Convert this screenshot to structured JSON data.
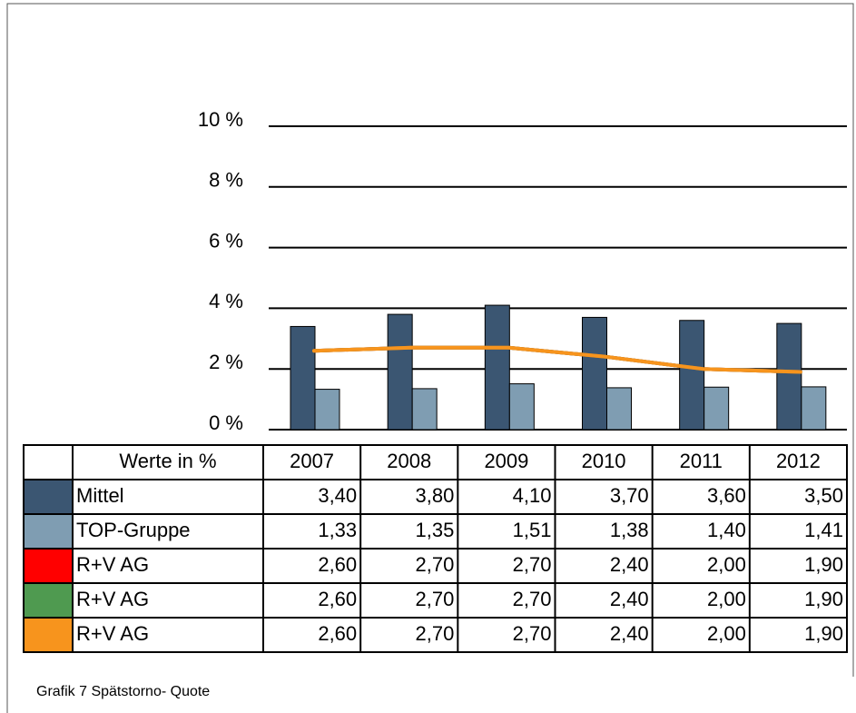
{
  "chart_data": {
    "type": "bar",
    "categories": [
      "2007",
      "2008",
      "2009",
      "2010",
      "2011",
      "2012"
    ],
    "table_header": "Werte in %",
    "series": [
      {
        "name": "Mittel",
        "type": "bar",
        "color": "#3b5672",
        "values": [
          3.4,
          3.8,
          4.1,
          3.7,
          3.6,
          3.5
        ],
        "value_labels": [
          "3,40",
          "3,80",
          "4,10",
          "3,70",
          "3,60",
          "3,50"
        ]
      },
      {
        "name": "TOP-Gruppe",
        "type": "bar",
        "color": "#7f9db2",
        "values": [
          1.33,
          1.35,
          1.51,
          1.38,
          1.4,
          1.41
        ],
        "value_labels": [
          "1,33",
          "1,35",
          "1,51",
          "1,38",
          "1,40",
          "1,41"
        ]
      },
      {
        "name": "R+V AG",
        "type": "line",
        "color": "#ff0000",
        "values": [
          2.6,
          2.7,
          2.7,
          2.4,
          2.0,
          1.9
        ],
        "value_labels": [
          "2,60",
          "2,70",
          "2,70",
          "2,40",
          "2,00",
          "1,90"
        ]
      },
      {
        "name": "R+V AG",
        "type": "line",
        "color": "#4f9a50",
        "values": [
          2.6,
          2.7,
          2.7,
          2.4,
          2.0,
          1.9
        ],
        "value_labels": [
          "2,60",
          "2,70",
          "2,70",
          "2,40",
          "2,00",
          "1,90"
        ]
      },
      {
        "name": "R+V AG",
        "type": "line",
        "color": "#f7941d",
        "values": [
          2.6,
          2.7,
          2.7,
          2.4,
          2.0,
          1.9
        ],
        "value_labels": [
          "2,60",
          "2,70",
          "2,70",
          "2,40",
          "2,00",
          "1,90"
        ]
      }
    ],
    "ylim": [
      0,
      10
    ],
    "yticks": [
      {
        "value": 0,
        "label": "0 %"
      },
      {
        "value": 2,
        "label": "2 %"
      },
      {
        "value": 4,
        "label": "4 %"
      },
      {
        "value": 6,
        "label": "6 %"
      },
      {
        "value": 8,
        "label": "8 %"
      },
      {
        "value": 10,
        "label": "10 %"
      }
    ],
    "grid": true,
    "caption": "Grafik 7 Spätstorno- Quote"
  }
}
